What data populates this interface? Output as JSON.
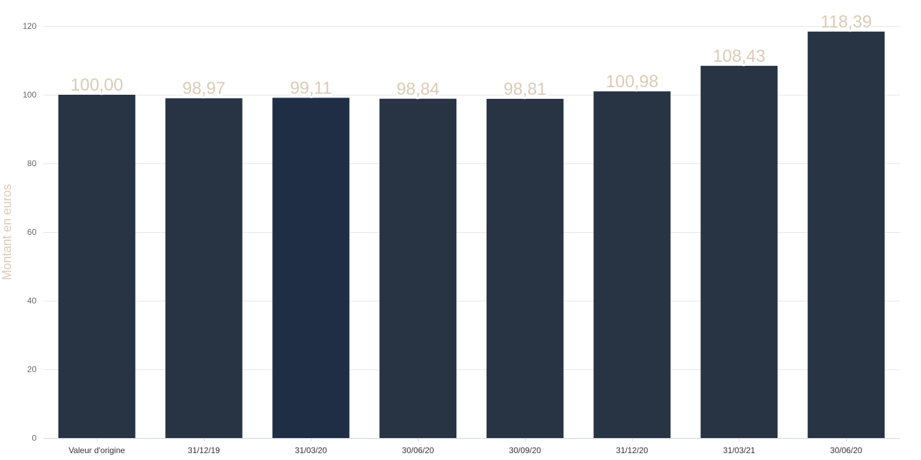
{
  "chart_data": {
    "type": "bar",
    "title": "",
    "xlabel": "",
    "ylabel": "Montant en euros",
    "ylim": [
      0,
      120
    ],
    "yticks": [
      0,
      20,
      40,
      60,
      80,
      100,
      120
    ],
    "grid": true,
    "legend": "none",
    "categories": [
      "Valeur d'origine",
      "31/12/19",
      "31/03/20",
      "30/06/20",
      "30/09/20",
      "31/12/20",
      "31/03/21",
      "30/06/20"
    ],
    "values": [
      100.0,
      98.97,
      99.11,
      98.84,
      98.81,
      100.98,
      108.43,
      118.39
    ],
    "data_labels": [
      "100,00",
      "98,97",
      "99,11",
      "98,84",
      "98,81",
      "100,98",
      "108,43",
      "118,39"
    ],
    "colors": {
      "bar": "#283343",
      "bar_highlight": "#1f2d45",
      "label": "#dccab5",
      "grid": "#e6e6e6"
    },
    "highlight_index": 2
  }
}
